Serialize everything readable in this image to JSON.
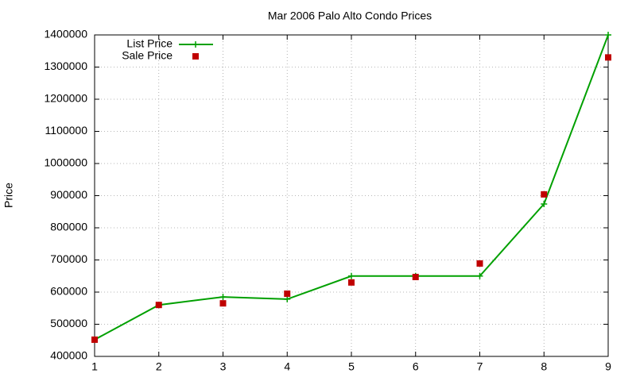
{
  "chart_data": {
    "type": "line",
    "title": "Mar 2006 Palo Alto Condo Prices",
    "y_label": "Price",
    "x": [
      1,
      2,
      3,
      4,
      5,
      6,
      7,
      8,
      9
    ],
    "series": [
      {
        "name": "List Price",
        "color": "#00a000",
        "mode": "linespoints",
        "values": [
          452000,
          560000,
          585000,
          578000,
          650000,
          650000,
          650000,
          874000,
          1400000
        ]
      },
      {
        "name": "Sale Price",
        "color": "#c00000",
        "mode": "points",
        "values": [
          452000,
          560000,
          565000,
          595000,
          630000,
          647000,
          689000,
          904000,
          1330000
        ]
      }
    ],
    "xlim": [
      1,
      9
    ],
    "xticks": [
      1,
      2,
      3,
      4,
      5,
      6,
      7,
      8,
      9
    ],
    "ylim": [
      400000,
      1400000
    ],
    "yticks": [
      400000,
      500000,
      600000,
      700000,
      800000,
      900000,
      1000000,
      1100000,
      1200000,
      1300000,
      1400000
    ],
    "grid": true,
    "legend": "top-left"
  }
}
